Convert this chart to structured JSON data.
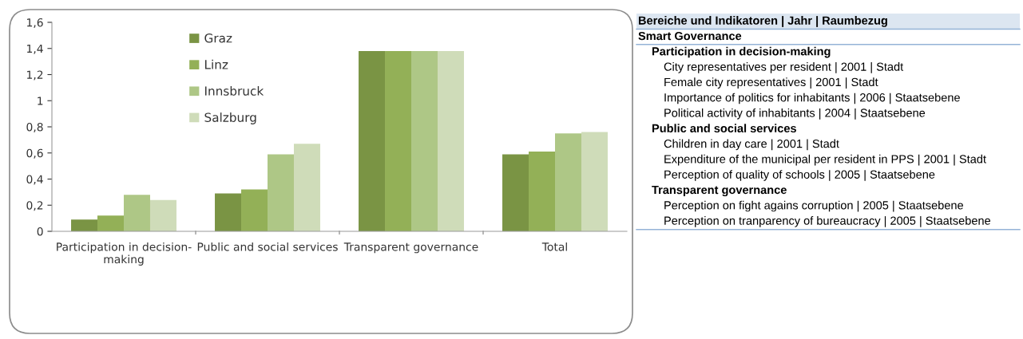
{
  "chart_data": [
    {
      "type": "bar",
      "categories": [
        "Participation in decision-\nmaking",
        "Public and social services",
        "Transparent governance",
        "Total"
      ],
      "series": [
        {
          "name": "Graz",
          "color": "#7a9444",
          "values": [
            0.09,
            0.29,
            1.38,
            0.59
          ]
        },
        {
          "name": "Linz",
          "color": "#93b057",
          "values": [
            0.12,
            0.32,
            1.38,
            0.61
          ]
        },
        {
          "name": "Innsbruck",
          "color": "#aec786",
          "values": [
            0.28,
            0.59,
            1.38,
            0.75
          ]
        },
        {
          "name": "Salzburg",
          "color": "#cfdcb9",
          "values": [
            0.24,
            0.67,
            1.38,
            0.76
          ]
        }
      ],
      "ylim": [
        0,
        1.6
      ],
      "yticks": [
        0,
        {
          "value": 0.2,
          "label": "0,2"
        },
        {
          "value": 0.4,
          "label": "0,4"
        },
        {
          "value": 0.6,
          "label": "0,6"
        },
        {
          "value": 0.8,
          "label": "0,8"
        },
        1,
        {
          "value": 1.2,
          "label": "1,2"
        },
        {
          "value": 1.4,
          "label": "1,4"
        },
        {
          "value": 1.6,
          "label": "1,6"
        }
      ],
      "grid": false,
      "legend": "top left"
    },
    {
      "type": "other",
      "title": "Bereiche und Indikatoren | Jahr | Raumbezug",
      "subtitle": "Smart Governance",
      "annotations": [
        "Participation in decision-making",
        "City representatives per resident | 2001 | Stadt",
        "Female city representatives | 2001 | Stadt",
        "Importance of politics for inhabitants | 2006 | Staatsebene",
        "Political activity of inhabitants | 2004 | Staatsebene",
        "Public and social services",
        "Children in day care | 2001 | Stadt",
        "Expenditure of the municipal per resident in PPS | 2001 | Stadt",
        "Perception of quality of schools | 2005 | Staatsebene",
        "Transparent governance",
        "Perception on fight agains corruption | 2005 | Staatsebene",
        "Perception on tranparency of bureaucracy | 2005 | Staatsebene"
      ]
    }
  ]
}
